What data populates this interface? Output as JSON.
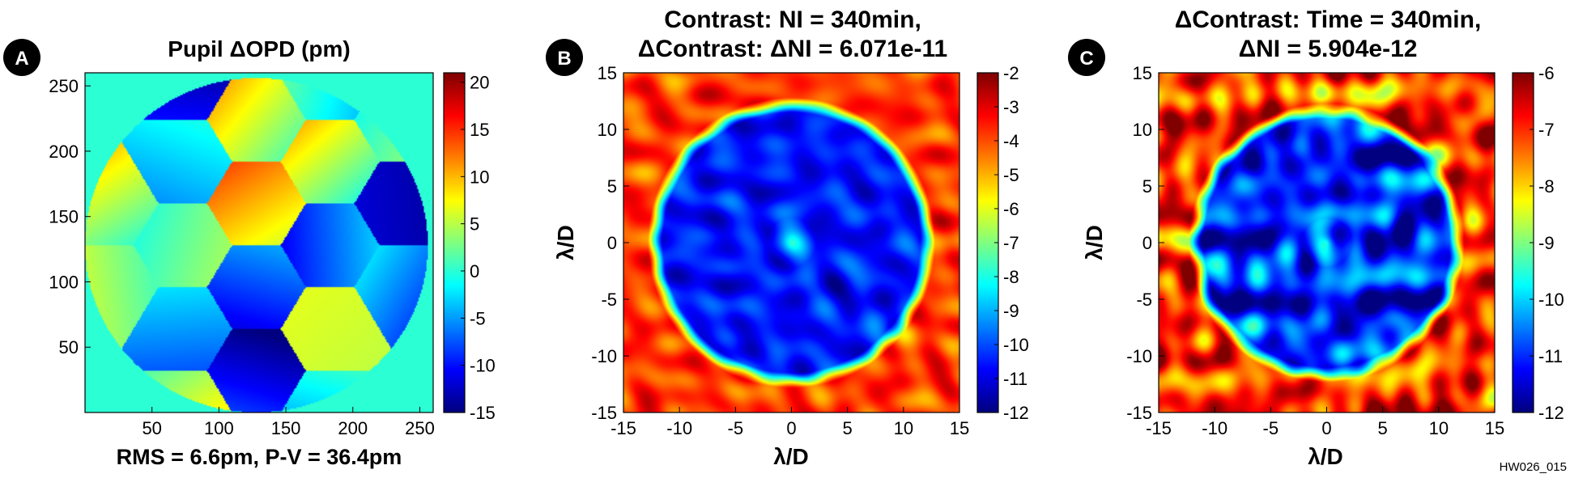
{
  "figure_id": "HW026_015",
  "colors": {
    "background": "#ffffff",
    "badge": "#000000",
    "badge_text": "#ffffff"
  },
  "chart_data": [
    {
      "type": "heatmap",
      "panel_label": "A",
      "title": "Pupil ΔOPD (pm)",
      "title_lines": [
        "Pupil ΔOPD (pm)"
      ],
      "caption": "RMS = 6.6pm, P-V = 36.4pm",
      "xlabel": "",
      "ylabel": "",
      "xlim": [
        0,
        260
      ],
      "ylim": [
        0,
        260
      ],
      "xticks": [
        50,
        100,
        150,
        200,
        250
      ],
      "yticks": [
        50,
        100,
        150,
        200,
        250
      ],
      "colorbar": {
        "min": -15,
        "max": 21,
        "ticks": [
          -15,
          -10,
          -5,
          0,
          5,
          10,
          15,
          20
        ]
      },
      "colormap": "jet",
      "background_value": 0,
      "pupil": {
        "center": [
          128,
          128
        ],
        "radius": 128
      },
      "hexagons": [
        {
          "center": [
            128,
            160
          ],
          "value": 10
        },
        {
          "center": [
            128,
            96
          ],
          "value": -8
        },
        {
          "center": [
            128,
            224
          ],
          "value": 6
        },
        {
          "center": [
            128,
            32
          ],
          "value": -12
        },
        {
          "center": [
            183,
            192
          ],
          "value": 5
        },
        {
          "center": [
            183,
            128
          ],
          "value": -7
        },
        {
          "center": [
            183,
            64
          ],
          "value": 6
        },
        {
          "center": [
            73,
            192
          ],
          "value": -3
        },
        {
          "center": [
            73,
            128
          ],
          "value": 2
        },
        {
          "center": [
            73,
            64
          ],
          "value": -5
        },
        {
          "center": [
            238,
            160
          ],
          "value": -13
        },
        {
          "center": [
            238,
            96
          ],
          "value": -6
        },
        {
          "center": [
            238,
            224
          ],
          "value": 2
        },
        {
          "center": [
            18,
            160
          ],
          "value": 5
        },
        {
          "center": [
            18,
            96
          ],
          "value": 4
        },
        {
          "center": [
            73,
            256
          ],
          "value": -13
        },
        {
          "center": [
            183,
            256
          ],
          "value": -1
        },
        {
          "center": [
            73,
            0
          ],
          "value": 6
        },
        {
          "center": [
            183,
            0
          ],
          "value": -3
        }
      ]
    },
    {
      "type": "heatmap",
      "panel_label": "B",
      "title": "Contrast: NI = 340min, ΔContrast: ΔNI = 6.071e-11",
      "title_lines": [
        "Contrast: NI = 340min,",
        "ΔContrast: ΔNI = 6.071e-11"
      ],
      "xlabel": "λ/D",
      "ylabel": "λ/D",
      "xlim": [
        -15,
        15
      ],
      "ylim": [
        -15,
        15
      ],
      "xticks": [
        -15,
        -10,
        -5,
        0,
        5,
        10,
        15
      ],
      "yticks": [
        -15,
        -10,
        -5,
        0,
        5,
        10,
        15
      ],
      "colorbar": {
        "min": -12,
        "max": -2,
        "ticks": [
          -12,
          -11,
          -10,
          -9,
          -8,
          -7,
          -6,
          -5,
          -4,
          -3,
          -2
        ]
      },
      "colormap": "jet",
      "dark_hole_radius": 11.5,
      "dark_hole_level": -10.6,
      "outside_level": -3.8,
      "noise": 0.7
    },
    {
      "type": "heatmap",
      "panel_label": "C",
      "title": "ΔContrast: Time = 340min, ΔNI = 5.904e-12",
      "title_lines": [
        "ΔContrast: Time = 340min,",
        "ΔNI = 5.904e-12"
      ],
      "xlabel": "λ/D",
      "ylabel": "λ/D",
      "xlim": [
        -15,
        15
      ],
      "ylim": [
        -15,
        15
      ],
      "xticks": [
        -15,
        -10,
        -5,
        0,
        5,
        10,
        15
      ],
      "yticks": [
        -15,
        -10,
        -5,
        0,
        5,
        10,
        15
      ],
      "colorbar": {
        "min": -12,
        "max": -6,
        "ticks": [
          -12,
          -11,
          -10,
          -9,
          -8,
          -7,
          -6
        ]
      },
      "colormap": "jet",
      "dark_hole_radius": 11.0,
      "dark_hole_level": -11.1,
      "outside_level": -7.0,
      "noise": 0.9
    }
  ]
}
